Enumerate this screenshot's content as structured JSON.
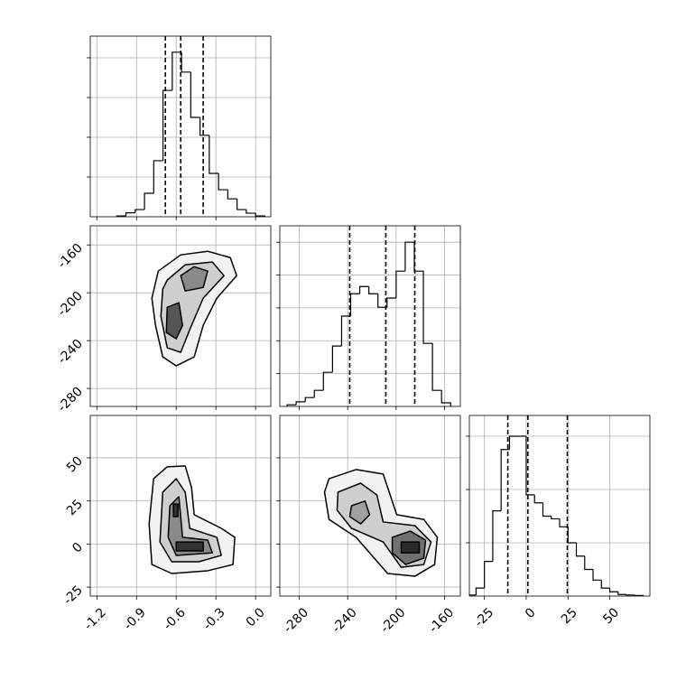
{
  "chart_data": [
    {
      "type": "histogram",
      "color": "#000000",
      "grid": true,
      "xlim": [
        -1.25,
        0.115
      ],
      "ylim": [
        0,
        4.545
      ],
      "xticks": [
        -1.2,
        -0.9,
        -0.6,
        -0.3,
        {
          "value": 0,
          "label": "0.0"
        }
      ],
      "yticks": [
        1,
        2,
        3,
        4
      ],
      "show_xtick_labels": false,
      "show_ytick_labels": false,
      "bins": [
        -1.05,
        -0.98,
        -0.91,
        -0.84,
        -0.77,
        -0.7,
        -0.63,
        -0.56,
        -0.49,
        -0.42,
        -0.35,
        -0.28,
        -0.21,
        -0.14,
        -0.07,
        0.0,
        0.07
      ],
      "values": [
        0.02,
        0.1,
        0.18,
        0.59,
        1.41,
        3.18,
        4.14,
        3.64,
        2.5,
        2.05,
        1.09,
        0.68,
        0.45,
        0.18,
        0.09,
        0.02
      ],
      "quantiles": [
        -0.682,
        -0.566,
        -0.396
      ]
    },
    {
      "type": "contour",
      "color": "#000000",
      "grid": true,
      "xlim": [
        -1.25,
        0.115
      ],
      "ylim": [
        -295,
        -144
      ],
      "xticks": [
        -1.2,
        -0.9,
        -0.6,
        -0.3,
        {
          "value": 0,
          "label": "0.0"
        }
      ],
      "yticks": [
        -160,
        -200,
        -240,
        -280
      ],
      "show_xtick_labels": false,
      "show_ytick_labels": true,
      "contours": [
        {
          "fill": "#f2f2f2",
          "x": [
            -0.736,
            -0.566,
            -0.362,
            -0.191,
            -0.143,
            -0.293,
            -0.396,
            -0.464,
            -0.6,
            -0.702,
            -0.757,
            -0.784
          ],
          "y": [
            -181.9,
            -168.3,
            -165.3,
            -170.6,
            -185.7,
            -204.5,
            -227.2,
            -253.6,
            -261.1,
            -253.6,
            -227.2,
            -204.5
          ]
        },
        {
          "fill": "#cfcfcf",
          "x": [
            -0.668,
            -0.532,
            -0.327,
            -0.239,
            -0.396,
            -0.498,
            -0.566,
            -0.668,
            -0.716,
            -0.702
          ],
          "y": [
            -189.4,
            -176.6,
            -174.3,
            -185.7,
            -204.5,
            -230.9,
            -249.8,
            -246,
            -219.6,
            -197
          ]
        },
        {
          "fill": "#8a8a8a",
          "x": [
            -0.566,
            -0.464,
            -0.362,
            -0.396,
            -0.532
          ],
          "y": [
            -185.7,
            -178.2,
            -181.9,
            -195.5,
            -198.5
          ]
        },
        {
          "fill": "#555555",
          "x": [
            -0.668,
            -0.58,
            -0.552,
            -0.6,
            -0.675
          ],
          "y": [
            -212.1,
            -208.3,
            -227.2,
            -238.5,
            -233.2
          ]
        }
      ]
    },
    {
      "type": "contour",
      "color": "#000000",
      "grid": true,
      "xlim": [
        -1.25,
        0.115
      ],
      "ylim": [
        -30.2,
        74.6
      ],
      "xticks": [
        -1.2,
        -0.9,
        -0.6,
        -0.3,
        {
          "value": 0,
          "label": "0.0"
        }
      ],
      "yticks": [
        50,
        25,
        0,
        -25
      ],
      "show_xtick_labels": true,
      "show_ytick_labels": true,
      "contours": [
        {
          "fill": "#f2f2f2",
          "x": [
            -0.771,
            -0.668,
            -0.532,
            -0.484,
            -0.464,
            -0.259,
            -0.157,
            -0.171,
            -0.362,
            -0.634,
            -0.784,
            -0.805
          ],
          "y": [
            37.9,
            44.8,
            45.3,
            32.7,
            17,
            9.1,
            3.9,
            -11.9,
            -15.5,
            -17.1,
            -11.9,
            11.7
          ]
        },
        {
          "fill": "#cfcfcf",
          "x": [
            -0.702,
            -0.6,
            -0.532,
            -0.498,
            -0.293,
            -0.259,
            -0.43,
            -0.634,
            -0.723
          ],
          "y": [
            30.1,
            37.9,
            30.1,
            9.1,
            3.9,
            -6.6,
            -10.3,
            -10.3,
            1.2
          ]
        },
        {
          "fill": "#8a8a8a",
          "x": [
            -0.648,
            -0.58,
            -0.552,
            -0.362,
            -0.327,
            -0.6,
            -0.661
          ],
          "y": [
            22.2,
            27.5,
            3.9,
            2.3,
            -5.1,
            -6.6,
            3.9
          ]
        },
        {
          "fill": "#333333",
          "x": [
            -0.621,
            -0.587,
            -0.587,
            -0.621
          ],
          "y": [
            23.2,
            23.2,
            15.9,
            15.9
          ]
        },
        {
          "fill": "#333333",
          "x": [
            -0.6,
            -0.396,
            -0.396,
            -0.6
          ],
          "y": [
            1.2,
            1.2,
            -4.0,
            -4.0
          ]
        }
      ]
    },
    {
      "type": "histogram",
      "color": "#000000",
      "grid": true,
      "xlim": [
        -296,
        -147
      ],
      "ylim": [
        0,
        5.5
      ],
      "xticks": [
        -280,
        -240,
        -200,
        -160
      ],
      "yticks": [
        1,
        2,
        3,
        4,
        5
      ],
      "show_xtick_labels": false,
      "show_ytick_labels": false,
      "bins": [
        -290,
        -282.5,
        -275,
        -267.5,
        -260,
        -252.5,
        -245,
        -237.5,
        -230,
        -222.5,
        -215,
        -207.5,
        -200,
        -192.5,
        -185,
        -177.5,
        -170,
        -162.5,
        -155
      ],
      "values": [
        0.05,
        0.14,
        0.27,
        0.49,
        1.04,
        1.84,
        2.75,
        3.43,
        3.65,
        3.43,
        3.02,
        3.3,
        4.12,
        5.0,
        4.12,
        1.92,
        0.49,
        0.11
      ],
      "quantiles": [
        -238.3,
        -208.5,
        -184.6
      ]
    },
    {
      "type": "contour",
      "color": "#000000",
      "grid": true,
      "xlim": [
        -296,
        -147
      ],
      "ylim": [
        -30.2,
        74.6
      ],
      "xticks": [
        -280,
        -240,
        -200,
        -160
      ],
      "yticks": [
        50,
        25,
        0,
        -25
      ],
      "show_xtick_labels": true,
      "show_ytick_labels": false,
      "contours": [
        {
          "fill": "#f2f2f2",
          "x": [
            -255.4,
            -233.1,
            -210.7,
            -199.5,
            -177.2,
            -166,
            -168.2,
            -184.6,
            -207,
            -233.1,
            -255.4,
            -259.1
          ],
          "y": [
            37.9,
            43.2,
            40.6,
            17,
            14.3,
            3.9,
            -11.9,
            -18.7,
            -17.1,
            3.9,
            14.3,
            30.1
          ]
        },
        {
          "fill": "#cfcfcf",
          "x": [
            -248,
            -229.3,
            -215.9,
            -210.7,
            -184.6,
            -171.2,
            -177.2,
            -195.8,
            -210.7,
            -236.8,
            -248.7
          ],
          "y": [
            30.1,
            35.3,
            28.5,
            12.8,
            10.7,
            1.2,
            -11.9,
            -13.5,
            1.2,
            9.1,
            19.6
          ]
        },
        {
          "fill": "#a0a0a0",
          "x": [
            -236.8,
            -225.6,
            -221.9,
            -229.3,
            -238.3
          ],
          "y": [
            22.2,
            24.9,
            17,
            11.7,
            15.9
          ]
        },
        {
          "fill": "#707070",
          "x": [
            -203.2,
            -188.3,
            -175.7,
            -177.2,
            -192.1,
            -203.2
          ],
          "y": [
            3.9,
            7.5,
            2.3,
            -8.2,
            -11.9,
            -5.1
          ]
        },
        {
          "fill": "#2a2a2a",
          "x": [
            -195.8,
            -180.9,
            -180.9,
            -195.8
          ],
          "y": [
            1.2,
            1.2,
            -5.1,
            -5.1
          ]
        }
      ]
    },
    {
      "type": "histogram",
      "color": "#000000",
      "grid": true,
      "xlim": [
        -34,
        74
      ],
      "ylim": [
        0,
        3.39
      ],
      "xticks": [
        -25,
        0,
        25,
        50
      ],
      "yticks": [
        1,
        2,
        3
      ],
      "show_xtick_labels": true,
      "show_ytick_labels": false,
      "bins": [
        -35,
        -30,
        -25,
        -20,
        -15,
        -10,
        -5,
        0,
        5,
        10,
        15,
        20,
        25,
        30,
        35,
        40,
        45,
        50,
        55,
        60,
        65,
        70
      ],
      "values": [
        0.02,
        0.15,
        0.65,
        1.6,
        2.75,
        3.0,
        3.0,
        1.9,
        1.75,
        1.5,
        1.45,
        1.3,
        1.0,
        0.75,
        0.5,
        0.3,
        0.15,
        0.08,
        0.03,
        0.02,
        0.01
      ],
      "quantiles": [
        -11,
        1,
        24.6
      ]
    }
  ]
}
